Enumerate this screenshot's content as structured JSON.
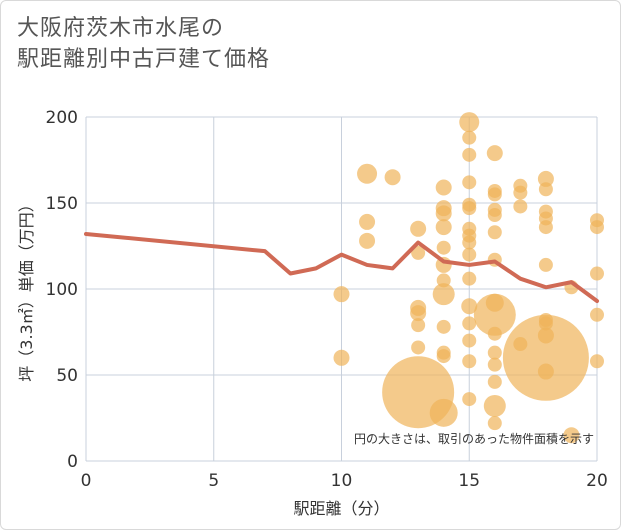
{
  "title": {
    "line1": "大阪府茨木市水尾の",
    "line2": "駅距離別中古戸建て価格"
  },
  "chart_data": {
    "type": "scatter",
    "xlabel": "駅距離（分）",
    "ylabel": "坪（3.3㎡）単価（万円）",
    "xlim": [
      0,
      20
    ],
    "ylim": [
      0,
      200
    ],
    "xticks": [
      0,
      5,
      10,
      15,
      20
    ],
    "yticks": [
      0,
      50,
      100,
      150,
      200
    ],
    "note": "円の大きさは、取引のあった物件面積を示す",
    "colors": {
      "bubble": "#f0b45a",
      "line": "#d06a55",
      "grid": "#c8d0dc"
    },
    "bubbles": [
      {
        "x": 10,
        "y": 97,
        "s": 8
      },
      {
        "x": 10,
        "y": 60,
        "s": 8
      },
      {
        "x": 11,
        "y": 167,
        "s": 10
      },
      {
        "x": 11,
        "y": 139,
        "s": 8
      },
      {
        "x": 11,
        "y": 128,
        "s": 8
      },
      {
        "x": 12,
        "y": 165,
        "s": 8
      },
      {
        "x": 13,
        "y": 135,
        "s": 8
      },
      {
        "x": 13,
        "y": 121,
        "s": 7
      },
      {
        "x": 13,
        "y": 89,
        "s": 8
      },
      {
        "x": 13,
        "y": 86,
        "s": 8
      },
      {
        "x": 13,
        "y": 79,
        "s": 7
      },
      {
        "x": 13,
        "y": 66,
        "s": 7
      },
      {
        "x": 13,
        "y": 40,
        "s": 36
      },
      {
        "x": 14,
        "y": 159,
        "s": 8
      },
      {
        "x": 14,
        "y": 147,
        "s": 8
      },
      {
        "x": 14,
        "y": 144,
        "s": 8
      },
      {
        "x": 14,
        "y": 136,
        "s": 8
      },
      {
        "x": 14,
        "y": 124,
        "s": 7
      },
      {
        "x": 14,
        "y": 114,
        "s": 8
      },
      {
        "x": 14,
        "y": 105,
        "s": 7
      },
      {
        "x": 14,
        "y": 97,
        "s": 11
      },
      {
        "x": 14,
        "y": 78,
        "s": 7
      },
      {
        "x": 14,
        "y": 63,
        "s": 7
      },
      {
        "x": 14,
        "y": 61,
        "s": 7
      },
      {
        "x": 14,
        "y": 28,
        "s": 14
      },
      {
        "x": 15,
        "y": 197,
        "s": 10
      },
      {
        "x": 15,
        "y": 188,
        "s": 7
      },
      {
        "x": 15,
        "y": 178,
        "s": 7
      },
      {
        "x": 15,
        "y": 162,
        "s": 7
      },
      {
        "x": 15,
        "y": 149,
        "s": 7
      },
      {
        "x": 15,
        "y": 147,
        "s": 7
      },
      {
        "x": 15,
        "y": 135,
        "s": 7
      },
      {
        "x": 15,
        "y": 131,
        "s": 7
      },
      {
        "x": 15,
        "y": 127,
        "s": 7
      },
      {
        "x": 15,
        "y": 120,
        "s": 7
      },
      {
        "x": 15,
        "y": 106,
        "s": 7
      },
      {
        "x": 15,
        "y": 90,
        "s": 8
      },
      {
        "x": 15,
        "y": 80,
        "s": 7
      },
      {
        "x": 15,
        "y": 70,
        "s": 7
      },
      {
        "x": 15,
        "y": 58,
        "s": 7
      },
      {
        "x": 15,
        "y": 36,
        "s": 7
      },
      {
        "x": 16,
        "y": 179,
        "s": 8
      },
      {
        "x": 16,
        "y": 157,
        "s": 7
      },
      {
        "x": 16,
        "y": 155,
        "s": 7
      },
      {
        "x": 16,
        "y": 146,
        "s": 7
      },
      {
        "x": 16,
        "y": 143,
        "s": 7
      },
      {
        "x": 16,
        "y": 133,
        "s": 7
      },
      {
        "x": 16,
        "y": 117,
        "s": 7
      },
      {
        "x": 16,
        "y": 92,
        "s": 9
      },
      {
        "x": 16,
        "y": 85,
        "s": 21
      },
      {
        "x": 16,
        "y": 74,
        "s": 7
      },
      {
        "x": 16,
        "y": 63,
        "s": 7
      },
      {
        "x": 16,
        "y": 56,
        "s": 7
      },
      {
        "x": 16,
        "y": 46,
        "s": 7
      },
      {
        "x": 16,
        "y": 32,
        "s": 11
      },
      {
        "x": 16,
        "y": 22,
        "s": 7
      },
      {
        "x": 17,
        "y": 160,
        "s": 7
      },
      {
        "x": 17,
        "y": 156,
        "s": 7
      },
      {
        "x": 17,
        "y": 148,
        "s": 7
      },
      {
        "x": 17,
        "y": 68,
        "s": 7
      },
      {
        "x": 18,
        "y": 164,
        "s": 8
      },
      {
        "x": 18,
        "y": 158,
        "s": 7
      },
      {
        "x": 18,
        "y": 145,
        "s": 7
      },
      {
        "x": 18,
        "y": 141,
        "s": 7
      },
      {
        "x": 18,
        "y": 136,
        "s": 7
      },
      {
        "x": 18,
        "y": 114,
        "s": 7
      },
      {
        "x": 18,
        "y": 82,
        "s": 7
      },
      {
        "x": 18,
        "y": 80,
        "s": 7
      },
      {
        "x": 18,
        "y": 73,
        "s": 8
      },
      {
        "x": 18,
        "y": 60,
        "s": 43
      },
      {
        "x": 18,
        "y": 52,
        "s": 8
      },
      {
        "x": 19,
        "y": 101,
        "s": 7
      },
      {
        "x": 19,
        "y": 15,
        "s": 8
      },
      {
        "x": 20,
        "y": 140,
        "s": 7
      },
      {
        "x": 20,
        "y": 136,
        "s": 7
      },
      {
        "x": 20,
        "y": 109,
        "s": 7
      },
      {
        "x": 20,
        "y": 85,
        "s": 7
      },
      {
        "x": 20,
        "y": 58,
        "s": 7
      }
    ],
    "line": {
      "x": [
        0,
        7,
        8,
        9,
        10,
        11,
        12,
        13,
        14,
        15,
        16,
        17,
        18,
        19,
        20
      ],
      "y": [
        132,
        122,
        109,
        112,
        120,
        114,
        112,
        127,
        116,
        114,
        116,
        106,
        101,
        104,
        93
      ]
    }
  }
}
